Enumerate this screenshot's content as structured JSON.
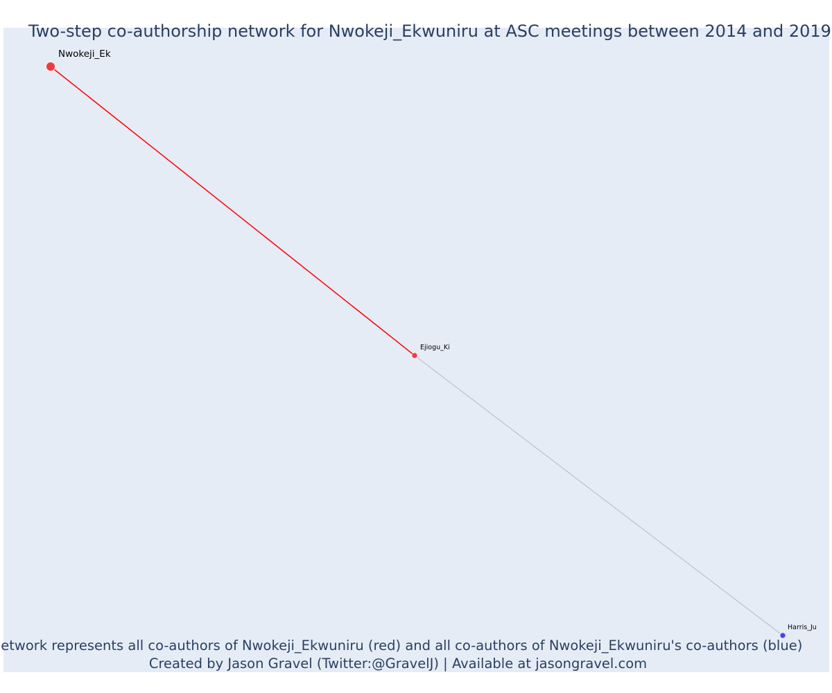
{
  "title": "Two-step co-authorship network for Nwokeji_Ekwuniru at ASC meetings between 2014 and 2019",
  "footer": {
    "line1": "Network represents all co-authors of Nwokeji_Ekwuniru (red) and all co-authors of Nwokeji_Ekwuniru's co-authors (blue)",
    "line2": "Created by Jason Gravel (Twitter:@GravelJ) | Available at jasongravel.com"
  },
  "colors": {
    "background": "#e5ecf6",
    "red_node": "#ef3b3b",
    "blue_node": "#4747e6",
    "red_edge": "#ff0000",
    "grey_edge": "#b4b8c8",
    "text": "#2a3f5f"
  },
  "chart_data": {
    "type": "network",
    "nodes": [
      {
        "id": "Nwokeji_Ek",
        "group": "red",
        "role": "focal"
      },
      {
        "id": "Ejiogu_Ki",
        "group": "red",
        "role": "co-author"
      },
      {
        "id": "Harris_Ju",
        "group": "blue",
        "role": "co-author of co-author"
      }
    ],
    "edges": [
      {
        "source": "Nwokeji_Ek",
        "target": "Ejiogu_Ki",
        "color": "red"
      },
      {
        "source": "Ejiogu_Ki",
        "target": "Harris_Ju",
        "color": "grey"
      }
    ]
  }
}
